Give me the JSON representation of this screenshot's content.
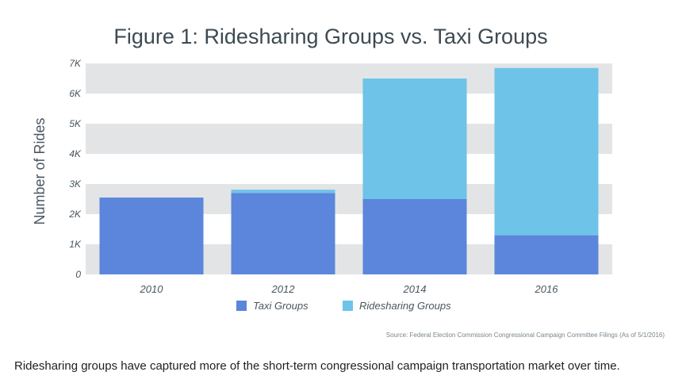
{
  "chart_data": {
    "type": "bar",
    "stacked": true,
    "title": "Figure 1: Ridesharing Groups vs. Taxi Groups",
    "xlabel": "",
    "ylabel": "Number of Rides",
    "categories": [
      "2010",
      "2012",
      "2014",
      "2016"
    ],
    "ylim": [
      0,
      7000
    ],
    "yticks": [
      0,
      1000,
      2000,
      3000,
      4000,
      5000,
      6000,
      7000
    ],
    "ytick_labels": [
      "0",
      "1K",
      "2K",
      "3K",
      "4K",
      "5K",
      "6K",
      "7K"
    ],
    "series": [
      {
        "name": "Taxi Groups",
        "color": "#5b86db",
        "values": [
          2550,
          2700,
          2500,
          1300
        ]
      },
      {
        "name": "Ridesharing Groups",
        "color": "#6ec3e8",
        "values": [
          0,
          110,
          4000,
          5550
        ]
      }
    ],
    "legend": "bottom",
    "grid": "alternating horizontal bands",
    "band_color": "#e3e4e6",
    "source": "Source: Federal Election Commission Congressional Campaign Committee Filings (As of 5/1/2016)"
  },
  "caption": "Ridesharing groups have captured more of the short-term congressional campaign transportation market over time."
}
